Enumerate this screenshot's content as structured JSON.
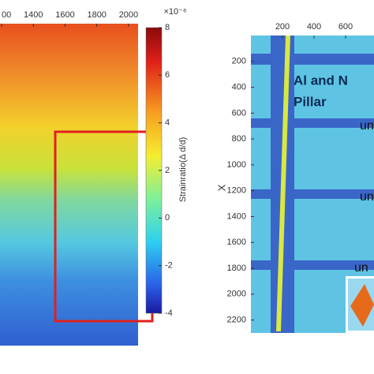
{
  "chart_data": [
    {
      "type": "heatmap",
      "xlim": [
        1190,
        2060
      ],
      "xticks": [
        {
          "value": 1200,
          "label": "00"
        },
        1400,
        1600,
        1800,
        2000
      ],
      "colorbar": {
        "label": "Strainratio(Δ d/d)",
        "scale_label": "×10⁻⁶",
        "lim": [
          -4,
          8
        ],
        "ticks": [
          8,
          6,
          4,
          2,
          0,
          -2,
          -4
        ]
      }
    },
    {
      "type": "heatmap",
      "ylabel": "X",
      "xlim": [
        0,
        780
      ],
      "ylim": [
        0,
        2300
      ],
      "xticks": [
        200,
        400,
        600
      ],
      "yticks": [
        200,
        400,
        600,
        800,
        1000,
        1200,
        1400,
        1600,
        1800,
        2000,
        2200
      ],
      "annotations": [
        "Al and N",
        "Pillar",
        "un",
        "un",
        "un"
      ]
    }
  ]
}
